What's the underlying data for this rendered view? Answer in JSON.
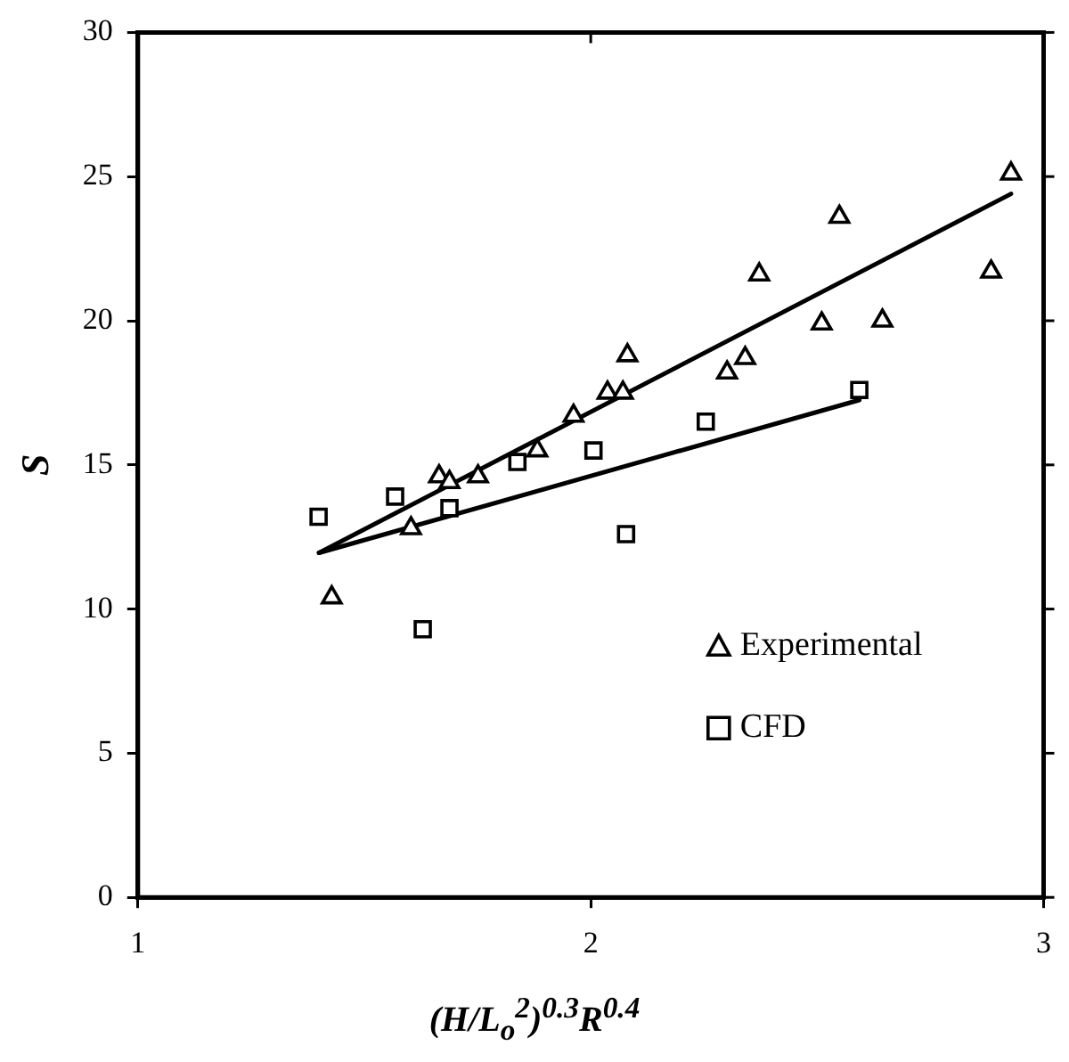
{
  "chart_data": {
    "type": "scatter",
    "xlabel": "(H/L$_{o}$$^{2}$)$^{0.3}$R$^{0.4}$",
    "ylabel": "S",
    "xlim": [
      1,
      3
    ],
    "xticks": [
      1,
      2,
      3
    ],
    "ylim": [
      0,
      30
    ],
    "yticks": [
      0,
      5,
      10,
      15,
      20,
      25,
      30
    ],
    "grid": false,
    "legend": "bottom right",
    "series": [
      {
        "name": "Experimental",
        "type": "scatter",
        "marker": "triangle",
        "color": "#000000",
        "x": [
          1.428,
          1.603,
          1.665,
          1.688,
          1.751,
          1.882,
          1.962,
          2.037,
          2.071,
          2.081,
          2.301,
          2.341,
          2.372,
          2.51,
          2.549,
          2.644,
          2.884,
          2.928
        ],
        "values": [
          10.4,
          12.8,
          14.6,
          14.4,
          14.6,
          15.5,
          16.7,
          17.5,
          17.5,
          18.8,
          18.2,
          18.7,
          21.6,
          19.9,
          23.6,
          20.0,
          21.7,
          25.1
        ]
      },
      {
        "name": "CFD",
        "type": "scatter",
        "marker": "square",
        "color": "#000000",
        "x": [
          1.399,
          1.568,
          1.629,
          1.688,
          1.838,
          2.006,
          2.078,
          2.254,
          2.593
        ],
        "values": [
          13.2,
          13.9,
          9.3,
          13.5,
          15.1,
          15.5,
          12.6,
          16.5,
          17.6
        ]
      },
      {
        "type": "line",
        "marker": "none",
        "line_style": "solid",
        "color": "#000000",
        "x": [
          1.4,
          2.928
        ],
        "values": [
          11.95,
          24.4
        ]
      },
      {
        "type": "line",
        "marker": "none",
        "line_style": "solid",
        "color": "#000000",
        "x": [
          1.4,
          2.593
        ],
        "values": [
          11.95,
          17.25
        ]
      }
    ]
  }
}
